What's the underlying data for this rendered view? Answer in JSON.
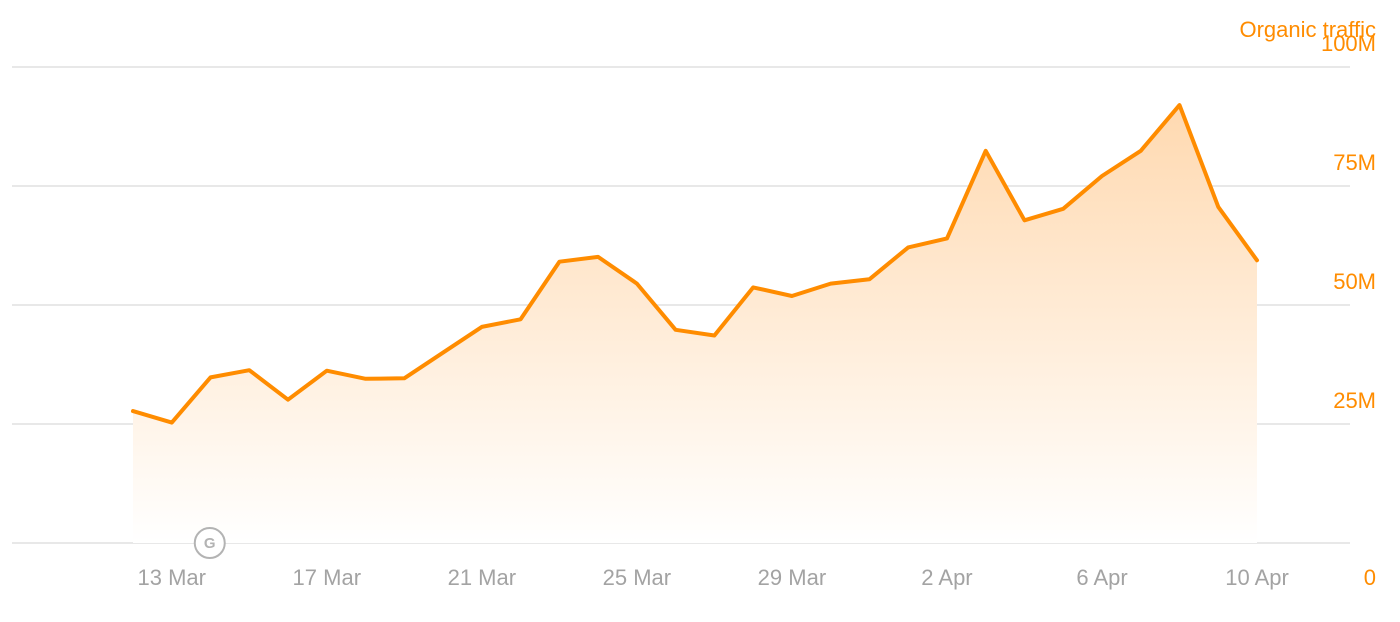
{
  "colors": {
    "accent": "#ff8c00",
    "axis_text": "#a3a3a3",
    "grid": "#e8e8e8",
    "area_top": "#ffd9b0",
    "area_bottom": "#ffffff",
    "annotation": "#b3b3b3"
  },
  "chart_data": {
    "type": "area",
    "title": "",
    "xlabel": "",
    "ylabel": "",
    "y_axis_position": "right",
    "grid": true,
    "legend": "none",
    "ylim": [
      0,
      100000000
    ],
    "y_ticks": [
      {
        "value": 0,
        "label": "0"
      },
      {
        "value": 25000000,
        "label": "25M"
      },
      {
        "value": 50000000,
        "label": "50M"
      },
      {
        "value": 75000000,
        "label": "75M"
      },
      {
        "value": 100000000,
        "label": "100M"
      }
    ],
    "x_ticks": [
      "13 Mar",
      "17 Mar",
      "21 Mar",
      "25 Mar",
      "29 Mar",
      "2 Apr",
      "6 Apr",
      "10 Apr"
    ],
    "x": [
      "12 Mar",
      "13 Mar",
      "14 Mar",
      "15 Mar",
      "16 Mar",
      "17 Mar",
      "18 Mar",
      "19 Mar",
      "20 Mar",
      "21 Mar",
      "22 Mar",
      "23 Mar",
      "24 Mar",
      "25 Mar",
      "26 Mar",
      "27 Mar",
      "28 Mar",
      "29 Mar",
      "30 Mar",
      "31 Mar",
      "1 Apr",
      "2 Apr",
      "3 Apr",
      "4 Apr",
      "5 Apr",
      "6 Apr",
      "7 Apr",
      "8 Apr",
      "9 Apr",
      "10 Apr"
    ],
    "series": [
      {
        "name": "Organic traffic",
        "values": [
          27.7,
          25.3,
          34.8,
          36.3,
          30.1,
          36.2,
          34.5,
          34.6,
          40.0,
          45.4,
          47.0,
          59.1,
          60.1,
          54.5,
          44.8,
          43.6,
          53.7,
          51.9,
          54.5,
          55.4,
          62.1,
          64.0,
          82.4,
          67.8,
          70.2,
          77.1,
          82.4,
          92.0,
          70.6,
          59.4
        ],
        "unit": "M"
      }
    ],
    "annotations": [
      {
        "x": "13 Mar",
        "label": "G"
      }
    ]
  }
}
